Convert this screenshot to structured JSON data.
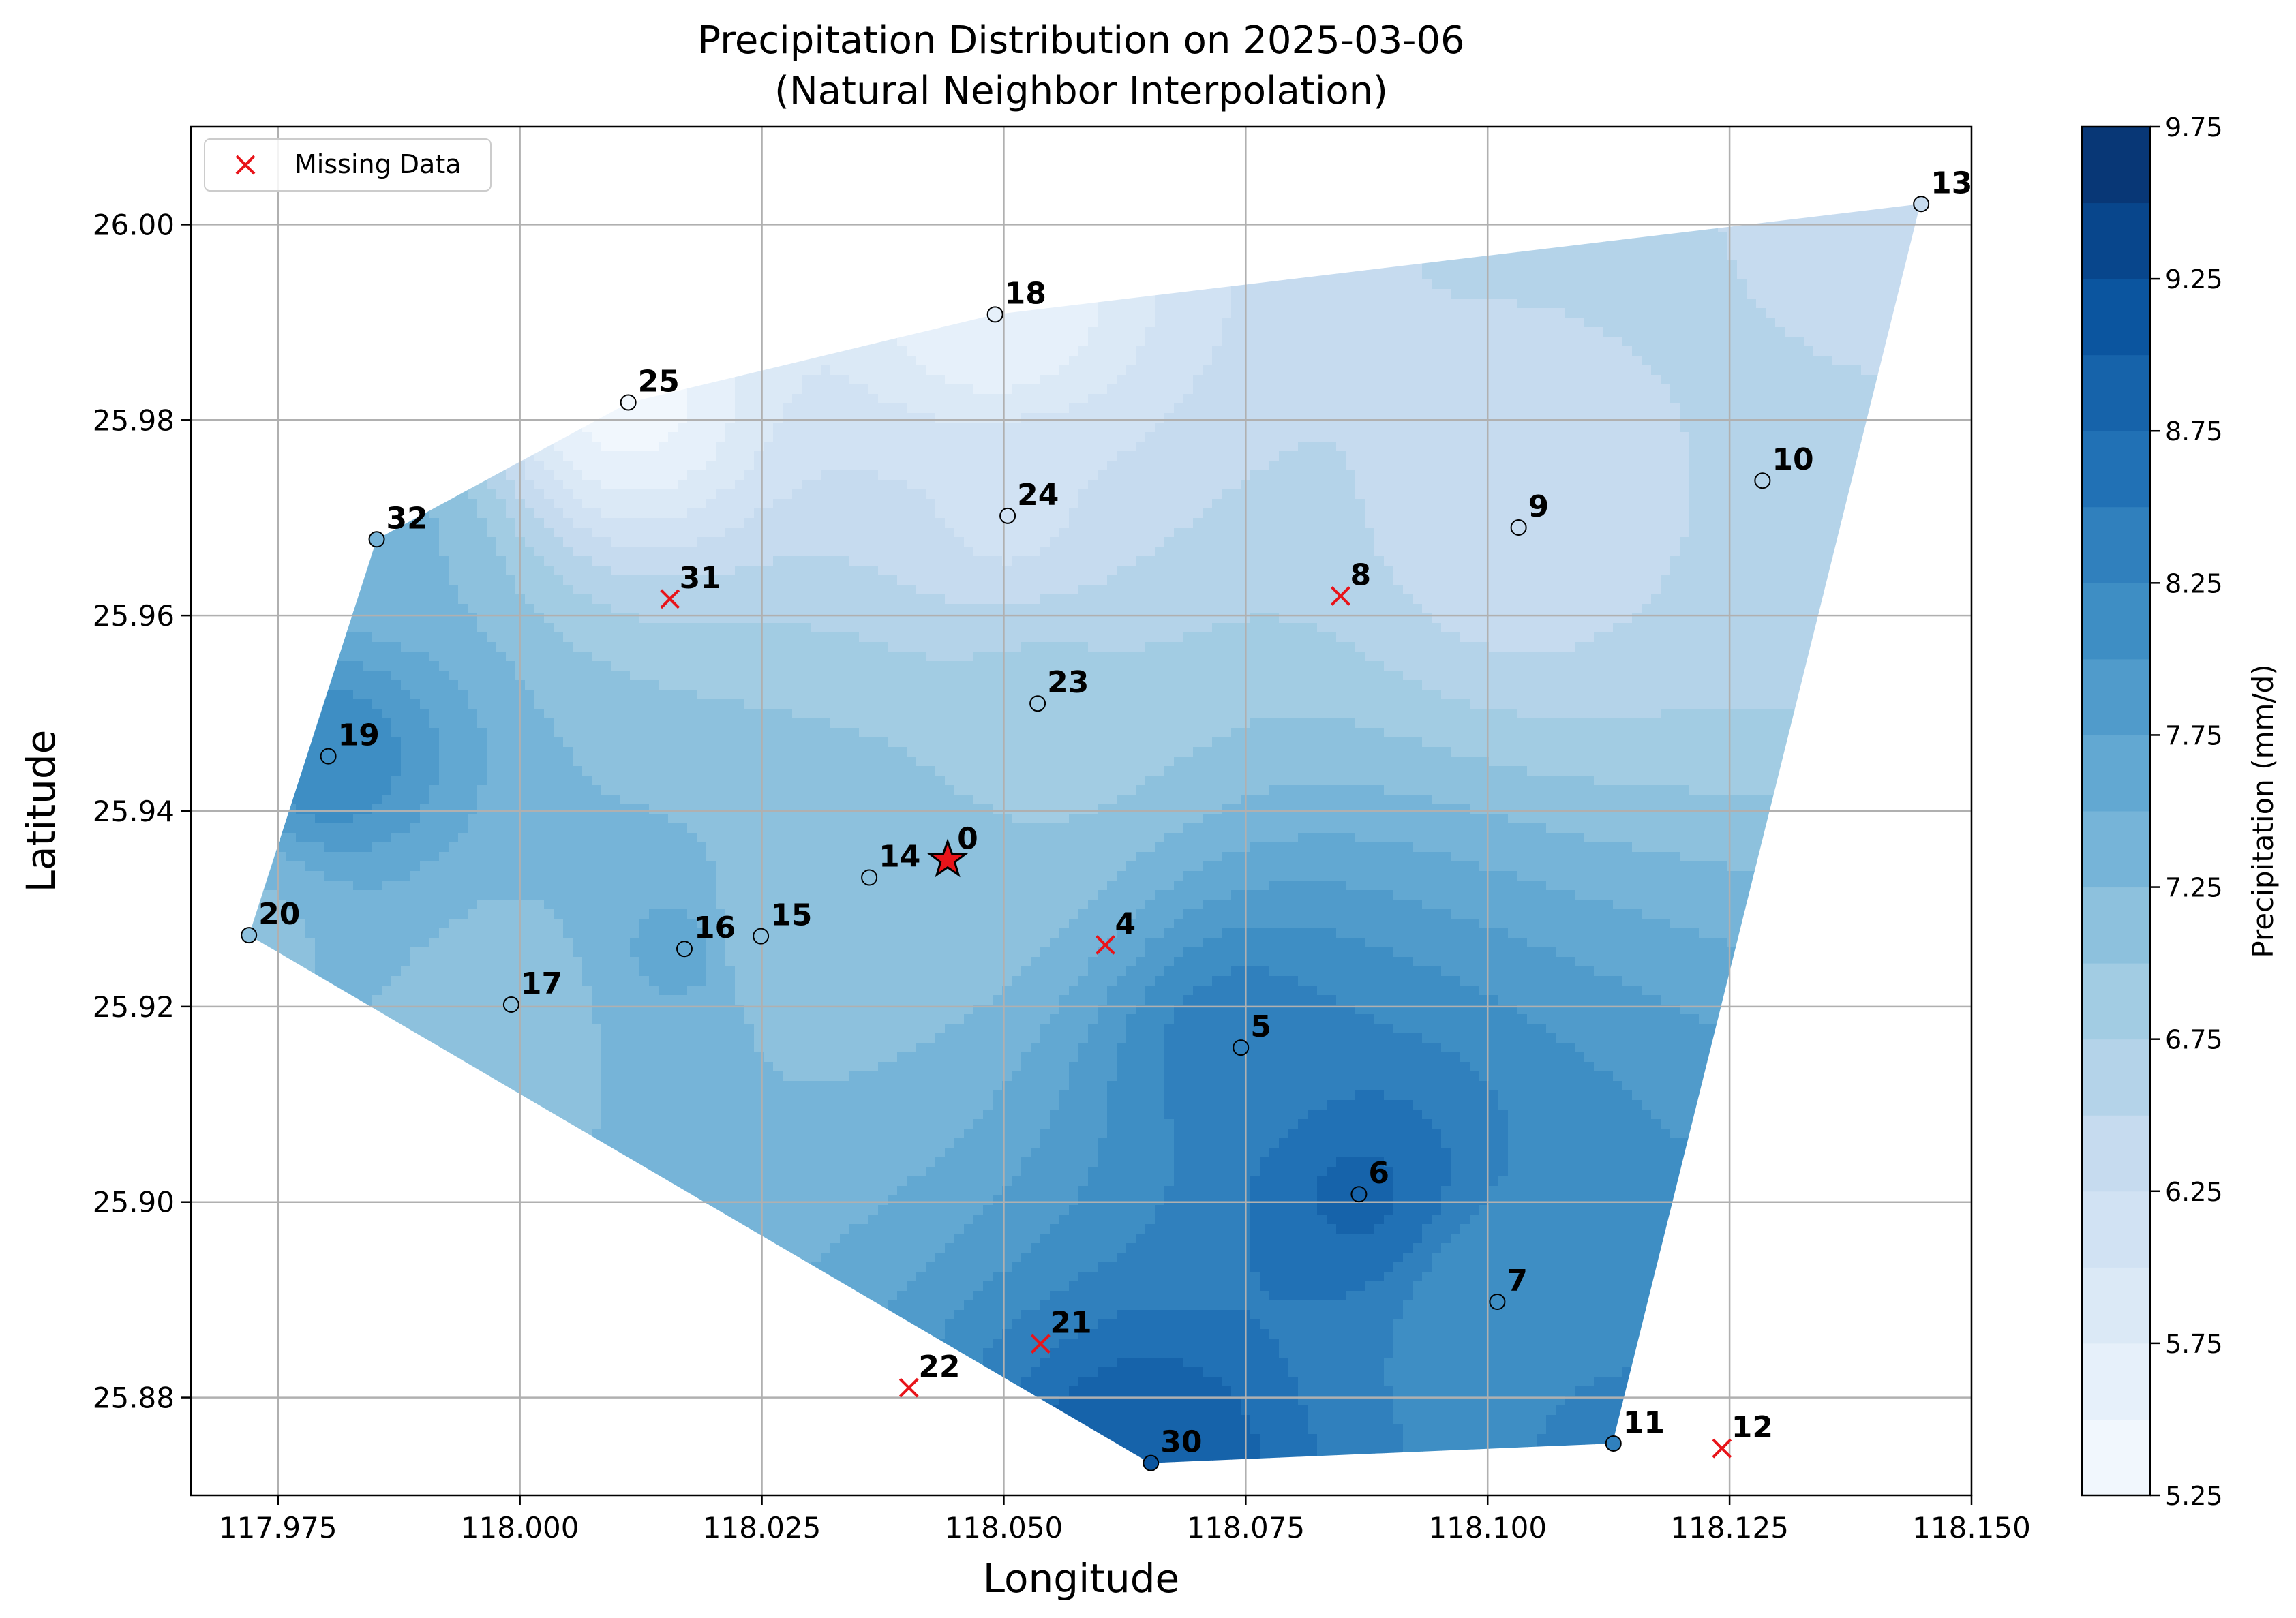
{
  "chart_data": {
    "type": "heatmap",
    "title_line1": "Precipitation Distribution on 2025-03-06",
    "title_line2": "(Natural Neighbor Interpolation)",
    "xlabel": "Longitude",
    "ylabel": "Latitude",
    "xlim": [
      117.966,
      118.15
    ],
    "ylim": [
      25.87,
      26.01
    ],
    "x_ticks": [
      117.975,
      118.0,
      118.025,
      118.05,
      118.075,
      118.1,
      118.125,
      118.15
    ],
    "x_tick_labels": [
      "117.975",
      "118.000",
      "118.025",
      "118.050",
      "118.075",
      "118.100",
      "118.125",
      "118.150"
    ],
    "y_ticks": [
      25.88,
      25.9,
      25.92,
      25.94,
      25.96,
      25.98,
      26.0
    ],
    "y_tick_labels": [
      "25.88",
      "25.90",
      "25.92",
      "25.94",
      "25.96",
      "25.98",
      "26.00"
    ],
    "grid": true,
    "legend": {
      "position": "upper-left",
      "entries": [
        {
          "label": "Missing Data",
          "marker": "x",
          "color": "#e8141a"
        }
      ]
    },
    "colorbar": {
      "label": "Precipitation (mm/d)",
      "min": 5.25,
      "max": 9.75,
      "step": 0.25,
      "tick_values": [
        5.25,
        5.75,
        6.25,
        6.75,
        7.25,
        7.75,
        8.25,
        8.75,
        9.25,
        9.75
      ],
      "tick_labels": [
        "5.25",
        "5.75",
        "6.25",
        "6.75",
        "7.25",
        "7.75",
        "8.25",
        "8.75",
        "9.25",
        "9.75"
      ],
      "colormap": "Blues",
      "colors": [
        "#f7fbff",
        "#deebf7",
        "#c6dbef",
        "#9ecae1",
        "#6baed6",
        "#4292c6",
        "#2171b5",
        "#08519c",
        "#08306b"
      ]
    },
    "hull": [
      [
        117.972,
        25.9273
      ],
      [
        117.9852,
        25.9678
      ],
      [
        118.0113,
        25.9818
      ],
      [
        118.0491,
        25.9908
      ],
      [
        118.1447,
        26.0021
      ],
      [
        118.1129,
        25.8753
      ],
      [
        118.0651,
        25.8733
      ]
    ],
    "stations": [
      {
        "id": "0",
        "lon": 118.0442,
        "lat": 25.935,
        "value": 7.0,
        "target": true,
        "missing": false
      },
      {
        "id": "4",
        "lon": 118.0605,
        "lat": 25.9263,
        "value": null,
        "missing": true
      },
      {
        "id": "5",
        "lon": 118.0745,
        "lat": 25.9158,
        "value": 8.4,
        "missing": false
      },
      {
        "id": "6",
        "lon": 118.0867,
        "lat": 25.9008,
        "value": 8.8,
        "missing": false
      },
      {
        "id": "7",
        "lon": 118.101,
        "lat": 25.8898,
        "value": 8.0,
        "missing": false
      },
      {
        "id": "8",
        "lon": 118.0848,
        "lat": 25.962,
        "value": null,
        "missing": true
      },
      {
        "id": "9",
        "lon": 118.1032,
        "lat": 25.969,
        "value": 6.3,
        "missing": false
      },
      {
        "id": "10",
        "lon": 118.1284,
        "lat": 25.9738,
        "value": 6.5,
        "missing": false
      },
      {
        "id": "11",
        "lon": 118.113,
        "lat": 25.8753,
        "value": 8.3,
        "missing": false
      },
      {
        "id": "12",
        "lon": 118.1242,
        "lat": 25.8748,
        "value": null,
        "missing": true
      },
      {
        "id": "13",
        "lon": 118.1448,
        "lat": 26.0021,
        "value": 6.4,
        "missing": false
      },
      {
        "id": "14",
        "lon": 118.0361,
        "lat": 25.9332,
        "value": 7.2,
        "missing": false
      },
      {
        "id": "15",
        "lon": 118.0249,
        "lat": 25.9272,
        "value": 7.0,
        "missing": false
      },
      {
        "id": "16",
        "lon": 118.017,
        "lat": 25.9259,
        "value": 7.6,
        "missing": false
      },
      {
        "id": "17",
        "lon": 117.9991,
        "lat": 25.9202,
        "value": 7.1,
        "missing": false
      },
      {
        "id": "18",
        "lon": 118.0491,
        "lat": 25.9908,
        "value": 5.5,
        "missing": false
      },
      {
        "id": "19",
        "lon": 117.9802,
        "lat": 25.9456,
        "value": 8.2,
        "missing": false
      },
      {
        "id": "20",
        "lon": 117.972,
        "lat": 25.9273,
        "value": 7.2,
        "missing": false
      },
      {
        "id": "21",
        "lon": 118.0538,
        "lat": 25.8855,
        "value": null,
        "missing": true
      },
      {
        "id": "22",
        "lon": 118.0402,
        "lat": 25.881,
        "value": null,
        "missing": true
      },
      {
        "id": "23",
        "lon": 118.0535,
        "lat": 25.951,
        "value": 6.8,
        "missing": false
      },
      {
        "id": "24",
        "lon": 118.0504,
        "lat": 25.9702,
        "value": 6.2,
        "missing": false
      },
      {
        "id": "25",
        "lon": 118.0112,
        "lat": 25.9818,
        "value": 5.4,
        "missing": false
      },
      {
        "id": "30",
        "lon": 118.0652,
        "lat": 25.8733,
        "value": 9.0,
        "missing": false
      },
      {
        "id": "31",
        "lon": 118.0155,
        "lat": 25.9617,
        "value": null,
        "missing": true
      },
      {
        "id": "32",
        "lon": 117.9852,
        "lat": 25.9678,
        "value": 7.3,
        "missing": false
      }
    ]
  }
}
